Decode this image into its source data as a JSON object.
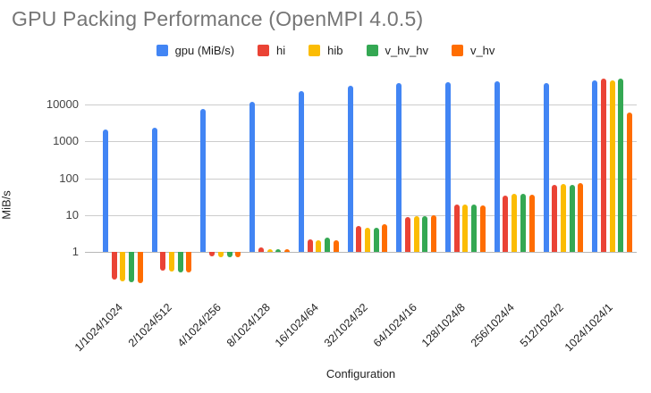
{
  "title": "GPU Packing Performance (OpenMPI 4.0.5)",
  "chart_data": {
    "type": "bar",
    "title": "GPU Packing Performance (OpenMPI 4.0.5)",
    "xlabel": "Configuration",
    "ylabel": "MiB/s",
    "y_scale": "log10",
    "y_ticks": [
      "1",
      "10",
      "100",
      "1000",
      "10000"
    ],
    "y_tick_values": [
      1,
      10,
      100,
      1000,
      10000
    ],
    "ylim": [
      0.1,
      60000
    ],
    "grid": true,
    "legend_position": "top",
    "categories": [
      "1/1024/1024",
      "2/1024/512",
      "4/1024/256",
      "8/1024/128",
      "16/1024/64",
      "32/1024/32",
      "64/1024/16",
      "128/1024/8",
      "256/1024/4",
      "512/1024/2",
      "1024/1024/1"
    ],
    "series": [
      {
        "name": "gpu (MiB/s)",
        "color": "#4285F4",
        "values": [
          2100,
          2400,
          7800,
          12000,
          23000,
          32000,
          38000,
          41500,
          43000,
          38000,
          47000
        ]
      },
      {
        "name": "hi",
        "color": "#EA4335",
        "values": [
          0.18,
          0.31,
          0.75,
          1.3,
          2.2,
          5.0,
          9.0,
          19.5,
          34,
          66,
          50000
        ]
      },
      {
        "name": "hib",
        "color": "#FBBC04",
        "values": [
          0.16,
          0.3,
          0.7,
          1.2,
          2.1,
          4.5,
          9.5,
          19.0,
          37,
          70,
          46000
        ]
      },
      {
        "name": "v_hv_hv",
        "color": "#34A853",
        "values": [
          0.15,
          0.28,
          0.7,
          1.15,
          2.4,
          4.5,
          9.5,
          19.0,
          38,
          68,
          51000
        ]
      },
      {
        "name": "v_hv",
        "color": "#FF6D01",
        "values": [
          0.14,
          0.27,
          0.7,
          1.2,
          2.1,
          5.5,
          10,
          18.5,
          35,
          72,
          6000
        ]
      }
    ]
  }
}
